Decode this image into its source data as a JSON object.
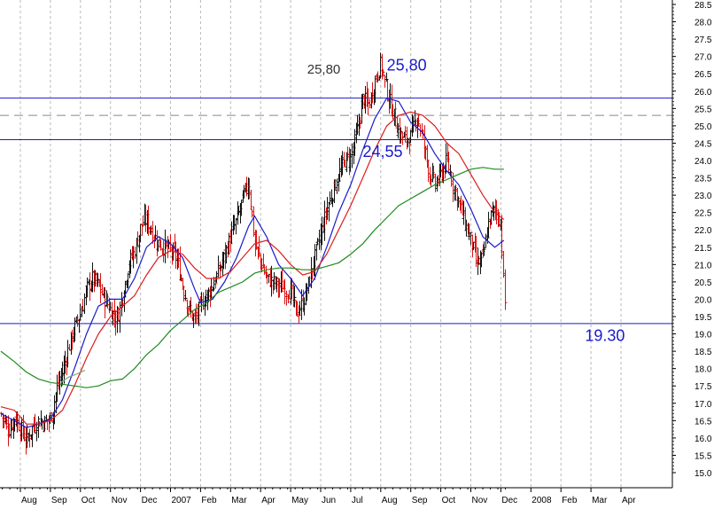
{
  "chart_data": {
    "type": "line",
    "title": "",
    "xlabel": "",
    "ylabel": "",
    "ylim": [
      15.0,
      28.5
    ],
    "y_ticks": [
      "15.0",
      "15.5",
      "16.0",
      "16.5",
      "17.0",
      "17.5",
      "18.0",
      "18.5",
      "19.0",
      "19.5",
      "20.0",
      "20.5",
      "21.0",
      "21.5",
      "22.0",
      "22.5",
      "23.0",
      "23.5",
      "24.0",
      "24.5",
      "25.0",
      "25.5",
      "26.0",
      "26.5",
      "27.0",
      "27.5",
      "28.0",
      "28.5"
    ],
    "x_ticks": [
      "Aug",
      "Sep",
      "Oct",
      "Nov",
      "Dec",
      "2007",
      "Feb",
      "Mar",
      "Apr",
      "May",
      "Jun",
      "Jul",
      "Aug",
      "Sep",
      "Oct",
      "Nov",
      "Dec",
      "2008",
      "Feb",
      "Mar",
      "Apr"
    ],
    "grid": "vertical-dashed",
    "y_axis_position": "right",
    "horizontal_levels": [
      {
        "value": 25.8,
        "style": "solid",
        "color": "#1a1acc"
      },
      {
        "value": 25.3,
        "style": "dashed",
        "color": "#888888"
      },
      {
        "value": 24.6,
        "style": "solid",
        "color": "#1a1acc"
      },
      {
        "value": 19.3,
        "style": "solid",
        "color": "#1a1acc"
      }
    ],
    "annotations": [
      {
        "text": "25,80",
        "color": "#333333",
        "at_month": 9.55,
        "at_value": 26.5
      },
      {
        "text": "25,80",
        "color": "#1a1acc",
        "at_month": 12.2,
        "at_value": 26.6
      },
      {
        "text": "24,55",
        "color": "#1a1acc",
        "at_month": 11.4,
        "at_value": 24.1
      },
      {
        "text": "19.30",
        "color": "#1a1acc",
        "at_month": 18.8,
        "at_value": 18.8
      }
    ],
    "price_points": [
      [
        -0.65,
        16.7
      ],
      [
        -0.4,
        16.2
      ],
      [
        -0.2,
        16.6
      ],
      [
        0.0,
        16.3
      ],
      [
        0.2,
        15.9
      ],
      [
        0.4,
        16.3
      ],
      [
        0.6,
        16.5
      ],
      [
        0.8,
        16.45
      ],
      [
        1.0,
        16.55
      ],
      [
        1.2,
        17.4
      ],
      [
        1.4,
        17.9
      ],
      [
        1.6,
        18.6
      ],
      [
        1.8,
        19.2
      ],
      [
        2.0,
        19.6
      ],
      [
        2.2,
        20.3
      ],
      [
        2.4,
        20.6
      ],
      [
        2.6,
        20.4
      ],
      [
        2.8,
        20.0
      ],
      [
        3.0,
        19.7
      ],
      [
        3.2,
        19.4
      ],
      [
        3.4,
        20.1
      ],
      [
        3.6,
        21.0
      ],
      [
        3.8,
        21.4
      ],
      [
        4.0,
        22.1
      ],
      [
        4.2,
        22.3
      ],
      [
        4.4,
        21.9
      ],
      [
        4.6,
        21.6
      ],
      [
        4.8,
        21.5
      ],
      [
        5.0,
        21.4
      ],
      [
        5.2,
        21.2
      ],
      [
        5.4,
        20.4
      ],
      [
        5.6,
        19.7
      ],
      [
        5.8,
        19.4
      ],
      [
        6.0,
        19.8
      ],
      [
        6.2,
        20.1
      ],
      [
        6.4,
        20.4
      ],
      [
        6.6,
        20.8
      ],
      [
        6.8,
        21.3
      ],
      [
        7.0,
        21.8
      ],
      [
        7.2,
        22.3
      ],
      [
        7.4,
        22.9
      ],
      [
        7.6,
        23.4
      ],
      [
        7.8,
        21.6
      ],
      [
        8.0,
        21.1
      ],
      [
        8.2,
        20.6
      ],
      [
        8.4,
        20.5
      ],
      [
        8.6,
        20.4
      ],
      [
        8.8,
        20.3
      ],
      [
        9.0,
        20.2
      ],
      [
        9.2,
        19.6
      ],
      [
        9.4,
        19.9
      ],
      [
        9.6,
        20.5
      ],
      [
        9.8,
        21.2
      ],
      [
        10.0,
        21.9
      ],
      [
        10.2,
        22.6
      ],
      [
        10.4,
        23.1
      ],
      [
        10.6,
        23.6
      ],
      [
        10.8,
        24.0
      ],
      [
        11.0,
        24.1
      ],
      [
        11.2,
        24.8
      ],
      [
        11.4,
        25.8
      ],
      [
        11.6,
        25.6
      ],
      [
        11.8,
        26.3
      ],
      [
        12.0,
        26.8
      ],
      [
        12.2,
        26.0
      ],
      [
        12.4,
        25.4
      ],
      [
        12.6,
        24.8
      ],
      [
        12.8,
        24.6
      ],
      [
        13.0,
        24.7
      ],
      [
        13.2,
        25.3
      ],
      [
        13.4,
        24.6
      ],
      [
        13.6,
        23.7
      ],
      [
        13.8,
        23.3
      ],
      [
        14.0,
        23.6
      ],
      [
        14.2,
        24.0
      ],
      [
        14.4,
        23.3
      ],
      [
        14.6,
        22.8
      ],
      [
        14.8,
        22.2
      ],
      [
        15.0,
        21.7
      ],
      [
        15.2,
        21.0
      ],
      [
        15.4,
        21.2
      ],
      [
        15.6,
        22.3
      ],
      [
        15.8,
        22.6
      ],
      [
        16.0,
        22.2
      ],
      [
        16.1,
        20.0
      ],
      [
        16.15,
        19.8
      ]
    ],
    "series": [
      {
        "color": "#1a1acc",
        "points": [
          [
            -0.65,
            16.7
          ],
          [
            -0.2,
            16.5
          ],
          [
            0.2,
            16.3
          ],
          [
            0.6,
            16.4
          ],
          [
            1.0,
            16.55
          ],
          [
            1.4,
            17.1
          ],
          [
            1.8,
            18.0
          ],
          [
            2.2,
            19.0
          ],
          [
            2.6,
            19.8
          ],
          [
            3.0,
            20.0
          ],
          [
            3.4,
            20.0
          ],
          [
            3.8,
            20.6
          ],
          [
            4.2,
            21.5
          ],
          [
            4.6,
            21.8
          ],
          [
            5.0,
            21.6
          ],
          [
            5.4,
            21.2
          ],
          [
            5.8,
            20.3
          ],
          [
            6.0,
            19.9
          ],
          [
            6.4,
            20.0
          ],
          [
            6.8,
            20.5
          ],
          [
            7.2,
            21.2
          ],
          [
            7.6,
            22.1
          ],
          [
            7.8,
            22.4
          ],
          [
            8.2,
            21.8
          ],
          [
            8.6,
            21.0
          ],
          [
            9.0,
            20.6
          ],
          [
            9.4,
            20.1
          ],
          [
            9.8,
            20.6
          ],
          [
            10.2,
            21.5
          ],
          [
            10.6,
            22.5
          ],
          [
            11.0,
            23.3
          ],
          [
            11.4,
            24.3
          ],
          [
            11.8,
            25.2
          ],
          [
            12.2,
            25.8
          ],
          [
            12.6,
            25.7
          ],
          [
            13.0,
            25.1
          ],
          [
            13.4,
            24.8
          ],
          [
            13.8,
            24.2
          ],
          [
            14.2,
            23.7
          ],
          [
            14.6,
            23.3
          ],
          [
            15.0,
            22.6
          ],
          [
            15.4,
            21.8
          ],
          [
            15.8,
            21.5
          ],
          [
            16.1,
            21.7
          ]
        ]
      },
      {
        "color": "#dd1c1c",
        "points": [
          [
            -0.65,
            16.9
          ],
          [
            -0.2,
            16.8
          ],
          [
            0.2,
            16.4
          ],
          [
            0.6,
            16.4
          ],
          [
            1.0,
            16.5
          ],
          [
            1.4,
            16.8
          ],
          [
            1.8,
            17.5
          ],
          [
            2.2,
            18.3
          ],
          [
            2.6,
            19.0
          ],
          [
            3.0,
            19.5
          ],
          [
            3.4,
            19.8
          ],
          [
            3.8,
            20.1
          ],
          [
            4.2,
            20.7
          ],
          [
            4.6,
            21.2
          ],
          [
            5.0,
            21.4
          ],
          [
            5.4,
            21.3
          ],
          [
            5.8,
            20.9
          ],
          [
            6.2,
            20.6
          ],
          [
            6.6,
            20.6
          ],
          [
            7.0,
            20.8
          ],
          [
            7.4,
            21.2
          ],
          [
            7.8,
            21.6
          ],
          [
            8.2,
            21.7
          ],
          [
            8.6,
            21.4
          ],
          [
            9.0,
            21.0
          ],
          [
            9.4,
            20.7
          ],
          [
            9.8,
            20.8
          ],
          [
            10.2,
            21.3
          ],
          [
            10.6,
            22.0
          ],
          [
            11.0,
            22.7
          ],
          [
            11.4,
            23.5
          ],
          [
            11.8,
            24.3
          ],
          [
            12.2,
            25.0
          ],
          [
            12.6,
            25.3
          ],
          [
            13.0,
            25.4
          ],
          [
            13.4,
            25.3
          ],
          [
            13.8,
            25.0
          ],
          [
            14.2,
            24.5
          ],
          [
            14.6,
            24.2
          ],
          [
            15.0,
            23.6
          ],
          [
            15.4,
            23.0
          ],
          [
            15.8,
            22.5
          ],
          [
            16.1,
            22.3
          ]
        ]
      },
      {
        "color": "#1e8a1e",
        "points": [
          [
            -0.65,
            18.5
          ],
          [
            -0.2,
            18.2
          ],
          [
            0.2,
            17.9
          ],
          [
            0.6,
            17.7
          ],
          [
            1.0,
            17.6
          ],
          [
            1.4,
            17.55
          ],
          [
            1.8,
            17.5
          ],
          [
            2.2,
            17.45
          ],
          [
            2.6,
            17.5
          ],
          [
            3.0,
            17.65
          ],
          [
            3.4,
            17.7
          ],
          [
            3.8,
            18.0
          ],
          [
            4.2,
            18.4
          ],
          [
            4.6,
            18.7
          ],
          [
            5.0,
            19.1
          ],
          [
            5.4,
            19.4
          ],
          [
            5.8,
            19.7
          ],
          [
            6.2,
            19.9
          ],
          [
            6.6,
            20.2
          ],
          [
            7.0,
            20.35
          ],
          [
            7.4,
            20.5
          ],
          [
            7.8,
            20.75
          ],
          [
            8.2,
            20.85
          ],
          [
            8.6,
            20.9
          ],
          [
            9.0,
            20.9
          ],
          [
            9.4,
            20.85
          ],
          [
            9.8,
            20.85
          ],
          [
            10.2,
            20.95
          ],
          [
            10.6,
            21.05
          ],
          [
            11.0,
            21.3
          ],
          [
            11.4,
            21.6
          ],
          [
            11.8,
            22.0
          ],
          [
            12.2,
            22.35
          ],
          [
            12.6,
            22.7
          ],
          [
            13.0,
            22.9
          ],
          [
            13.4,
            23.1
          ],
          [
            13.8,
            23.3
          ],
          [
            14.2,
            23.45
          ],
          [
            14.6,
            23.6
          ],
          [
            15.0,
            23.75
          ],
          [
            15.4,
            23.8
          ],
          [
            15.8,
            23.75
          ],
          [
            16.1,
            23.75
          ]
        ]
      },
      {
        "color": "#7aaa7a",
        "points": [
          [
            1.35,
            17.6
          ],
          [
            1.6,
            17.75
          ],
          [
            1.9,
            17.85
          ],
          [
            2.15,
            17.95
          ]
        ]
      }
    ]
  }
}
